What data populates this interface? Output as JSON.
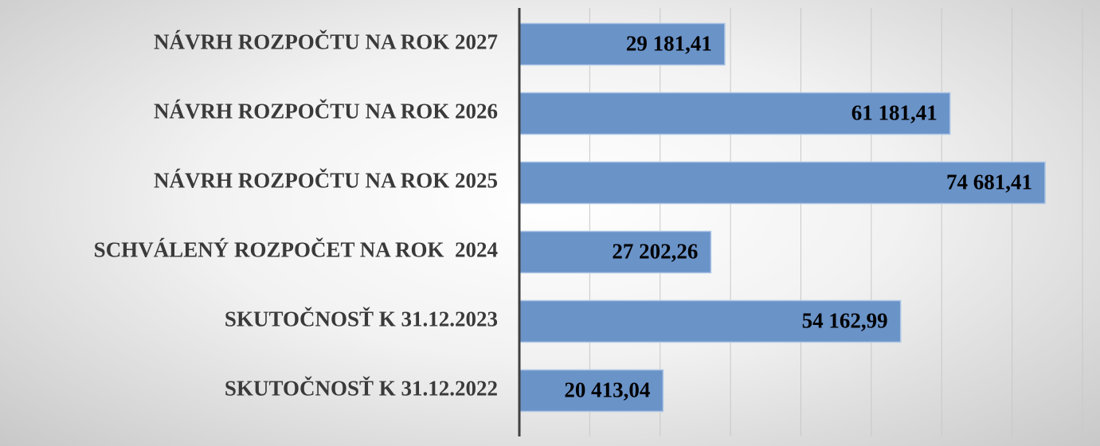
{
  "chart_data": {
    "type": "bar",
    "orientation": "horizontal",
    "categories": [
      "NÁVRH ROZPOČTU NA ROK 2027",
      "NÁVRH ROZPOČTU NA ROK 2026",
      "NÁVRH ROZPOČTU NA ROK 2025",
      "SCHVÁLENÝ ROZPOČET NA ROK  2024",
      "SKUTOČNOSŤ K 31.12.2023",
      "SKUTOČNOSŤ K 31.12.2022"
    ],
    "values": [
      29181.41,
      61181.41,
      74681.41,
      27202.26,
      54162.99,
      20413.04
    ],
    "value_labels": [
      "29 181,41",
      "61 181,41",
      "74 681,41",
      "27 202,26",
      "54 162,99",
      "20 413,04"
    ],
    "color": "#6a93c8",
    "xlim": [
      0,
      80000
    ],
    "xticks": [
      0,
      10000,
      20000,
      30000,
      40000,
      50000,
      60000,
      70000,
      80000
    ],
    "grid": true
  }
}
